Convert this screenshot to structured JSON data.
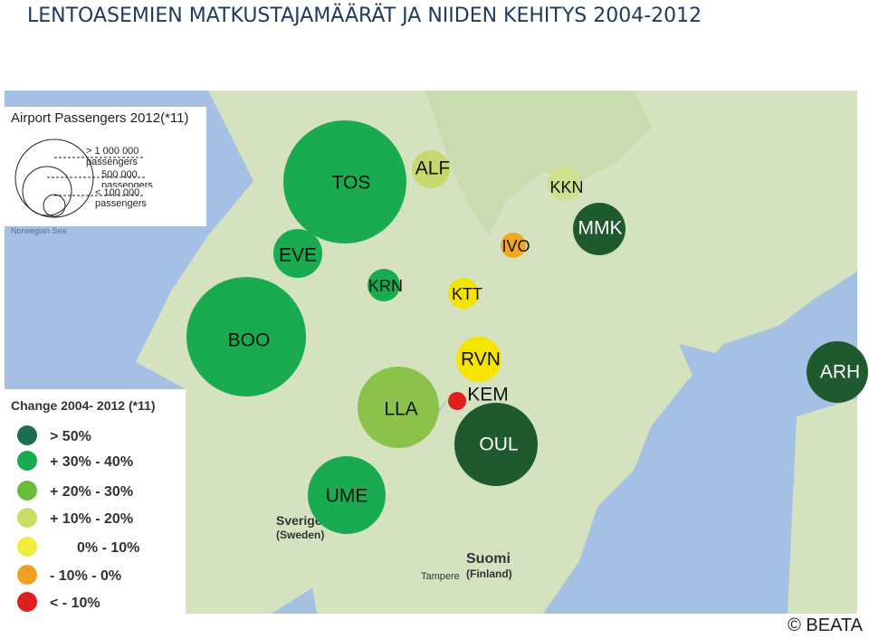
{
  "header": {
    "title": "LENTOASEMIEN MATKUSTAJAMÄÄRÄT JA NIIDEN KEHITYS 2004-2012"
  },
  "size_legend": {
    "title": "Airport Passengers 2012(*11)",
    "items": [
      "> 1 000 000 passengers",
      "500 000 passengers",
      "< 100 000 passengers"
    ]
  },
  "change_legend": {
    "title": "Change 2004- 2012 (*11)",
    "items": [
      "> 50%",
      "+ 30% - 40%",
      "+ 20% - 30%",
      "+ 10% - 20%",
      "0% - 10%",
      "- 10% - 0%",
      "< - 10%"
    ]
  },
  "map_labels": {
    "sea": "Norwegian Sea",
    "sweden": "Sverige",
    "sweden_en": "(Sweden)",
    "finland": "Suomi",
    "finland_en": "(Finland)",
    "city": "Tampere"
  },
  "airports": [
    "TOS",
    "ALF",
    "KKN",
    "EVE",
    "IVO",
    "MMK",
    "KRN",
    "KTT",
    "BOO",
    "RVN",
    "ARH",
    "LLA",
    "KEM",
    "OUL",
    "UME"
  ],
  "footer": "© BEATA"
}
